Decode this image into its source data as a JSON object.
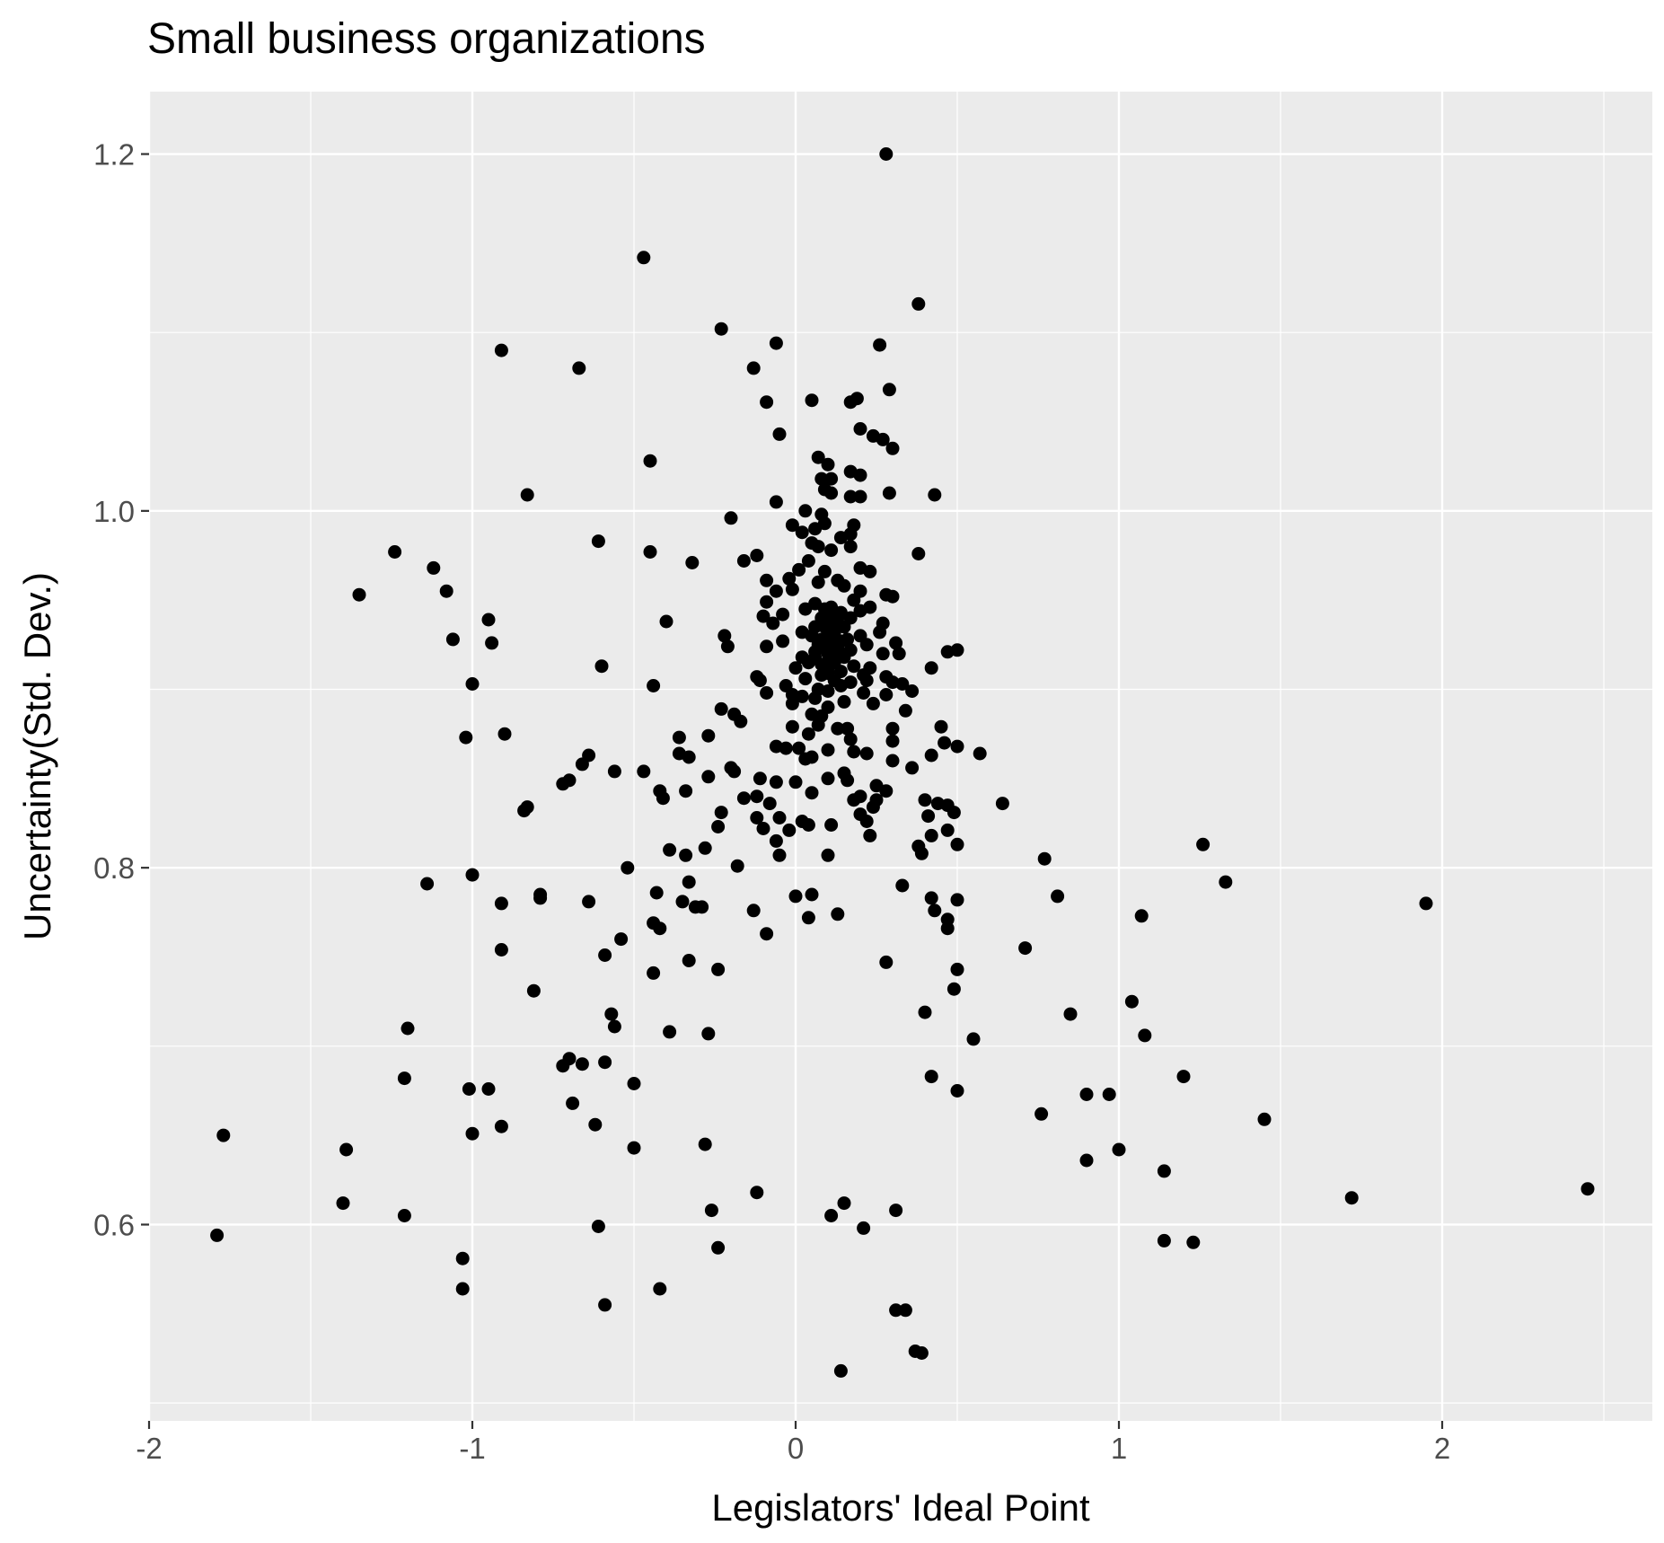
{
  "chart_data": {
    "type": "scatter",
    "title": "Small business organizations",
    "xlabel": "Legislators' Ideal Point",
    "ylabel": "Uncertainty(Std. Dev.)",
    "xlim": [
      -2.0,
      2.65
    ],
    "ylim": [
      0.49,
      1.235
    ],
    "x_ticks": [
      -2,
      -1,
      0,
      1,
      2
    ],
    "x_tick_labels": [
      "-2",
      "-1",
      "0",
      "1",
      "2"
    ],
    "y_ticks": [
      0.6,
      0.8,
      1.0,
      1.2
    ],
    "y_tick_labels": [
      "0.6",
      "0.8",
      "1.0",
      "1.2"
    ],
    "grid": true,
    "colors": {
      "panel": "#ebebeb",
      "grid": "#ffffff",
      "point": "#000000",
      "tick": "#4d4d4d"
    },
    "points": [
      [
        0.28,
        1.2
      ],
      [
        -0.47,
        1.142
      ],
      [
        0.38,
        1.116
      ],
      [
        -0.23,
        1.102
      ],
      [
        -0.06,
        1.094
      ],
      [
        0.26,
        1.093
      ],
      [
        -0.91,
        1.09
      ],
      [
        -0.67,
        1.08
      ],
      [
        -0.13,
        1.08
      ],
      [
        0.29,
        1.068
      ],
      [
        -0.09,
        1.061
      ],
      [
        0.05,
        1.062
      ],
      [
        0.17,
        1.061
      ],
      [
        0.19,
        1.063
      ],
      [
        0.2,
        1.046
      ],
      [
        0.24,
        1.042
      ],
      [
        0.27,
        1.04
      ],
      [
        0.3,
        1.035
      ],
      [
        -0.05,
        1.043
      ],
      [
        -0.45,
        1.028
      ],
      [
        0.07,
        1.03
      ],
      [
        0.1,
        1.026
      ],
      [
        0.17,
        1.022
      ],
      [
        0.2,
        1.02
      ],
      [
        0.11,
        1.018
      ],
      [
        0.08,
        1.018
      ],
      [
        0.09,
        1.012
      ],
      [
        0.11,
        1.01
      ],
      [
        0.17,
        1.008
      ],
      [
        0.2,
        1.008
      ],
      [
        0.29,
        1.01
      ],
      [
        0.43,
        1.009
      ],
      [
        -0.83,
        1.009
      ],
      [
        -0.06,
        1.005
      ],
      [
        0.03,
        1.0
      ],
      [
        0.08,
        0.998
      ],
      [
        0.09,
        0.993
      ],
      [
        0.06,
        0.99
      ],
      [
        0.17,
        0.987
      ],
      [
        0.18,
        0.992
      ],
      [
        0.14,
        0.985
      ],
      [
        0.05,
        0.982
      ],
      [
        0.02,
        0.988
      ],
      [
        -0.01,
        0.992
      ],
      [
        -0.2,
        0.996
      ],
      [
        -0.61,
        0.983
      ],
      [
        -1.24,
        0.977
      ],
      [
        -0.45,
        0.977
      ],
      [
        0.38,
        0.976
      ],
      [
        0.11,
        0.978
      ],
      [
        0.07,
        0.98
      ],
      [
        0.17,
        0.98
      ],
      [
        0.04,
        0.972
      ],
      [
        -0.12,
        0.975
      ],
      [
        -0.16,
        0.972
      ],
      [
        -0.32,
        0.971
      ],
      [
        -1.12,
        0.968
      ],
      [
        0.2,
        0.968
      ],
      [
        0.23,
        0.966
      ],
      [
        0.01,
        0.967
      ],
      [
        0.09,
        0.966
      ],
      [
        -0.02,
        0.962
      ],
      [
        -0.09,
        0.961
      ],
      [
        0.07,
        0.96
      ],
      [
        0.13,
        0.961
      ],
      [
        -0.06,
        0.955
      ],
      [
        -0.01,
        0.956
      ],
      [
        0.15,
        0.958
      ],
      [
        0.2,
        0.955
      ],
      [
        0.28,
        0.953
      ],
      [
        0.3,
        0.952
      ],
      [
        0.18,
        0.95
      ],
      [
        -0.09,
        0.949
      ],
      [
        0.06,
        0.948
      ],
      [
        0.03,
        0.945
      ],
      [
        0.11,
        0.946
      ],
      [
        0.14,
        0.943
      ],
      [
        0.2,
        0.944
      ],
      [
        0.23,
        0.946
      ],
      [
        -1.35,
        0.953
      ],
      [
        -1.08,
        0.955
      ],
      [
        -0.1,
        0.941
      ],
      [
        -0.04,
        0.942
      ],
      [
        0.08,
        0.94
      ],
      [
        0.11,
        0.94
      ],
      [
        0.17,
        0.94
      ],
      [
        0.27,
        0.937
      ],
      [
        -0.07,
        0.937
      ],
      [
        -0.4,
        0.938
      ],
      [
        -0.95,
        0.939
      ],
      [
        0.06,
        0.935
      ],
      [
        0.15,
        0.935
      ],
      [
        0.2,
        0.93
      ],
      [
        0.26,
        0.932
      ],
      [
        0.02,
        0.932
      ],
      [
        0.1,
        0.93
      ],
      [
        -0.22,
        0.93
      ],
      [
        -1.06,
        0.928
      ],
      [
        -0.94,
        0.926
      ],
      [
        -0.04,
        0.927
      ],
      [
        0.12,
        0.926
      ],
      [
        0.14,
        0.927
      ],
      [
        0.22,
        0.925
      ],
      [
        0.31,
        0.926
      ],
      [
        0.5,
        0.922
      ],
      [
        0.47,
        0.921
      ],
      [
        -0.21,
        0.924
      ],
      [
        -0.09,
        0.924
      ],
      [
        0.06,
        0.921
      ],
      [
        0.09,
        0.923
      ],
      [
        0.17,
        0.922
      ],
      [
        0.27,
        0.92
      ],
      [
        0.32,
        0.92
      ],
      [
        0.02,
        0.918
      ],
      [
        0.11,
        0.917
      ],
      [
        0.15,
        0.918
      ],
      [
        0.04,
        0.915
      ],
      [
        0.08,
        0.914
      ],
      [
        0.18,
        0.913
      ],
      [
        0.23,
        0.912
      ],
      [
        0.42,
        0.912
      ],
      [
        -0.6,
        0.913
      ],
      [
        0.0,
        0.912
      ],
      [
        -0.12,
        0.907
      ],
      [
        0.1,
        0.909
      ],
      [
        0.14,
        0.91
      ],
      [
        0.21,
        0.908
      ],
      [
        0.28,
        0.907
      ],
      [
        -0.11,
        0.905
      ],
      [
        0.03,
        0.906
      ],
      [
        0.17,
        0.904
      ],
      [
        0.22,
        0.905
      ],
      [
        0.3,
        0.904
      ],
      [
        0.33,
        0.903
      ],
      [
        -1.0,
        0.903
      ],
      [
        -0.44,
        0.902
      ],
      [
        -0.03,
        0.902
      ],
      [
        0.07,
        0.9
      ],
      [
        0.1,
        0.899
      ],
      [
        0.21,
        0.898
      ],
      [
        0.28,
        0.897
      ],
      [
        0.36,
        0.899
      ],
      [
        -0.09,
        0.898
      ],
      [
        -0.01,
        0.897
      ],
      [
        0.02,
        0.896
      ],
      [
        0.06,
        0.895
      ],
      [
        0.15,
        0.893
      ],
      [
        0.24,
        0.892
      ],
      [
        -0.01,
        0.892
      ],
      [
        0.1,
        0.89
      ],
      [
        0.34,
        0.888
      ],
      [
        -0.23,
        0.889
      ],
      [
        -0.19,
        0.886
      ],
      [
        0.05,
        0.886
      ],
      [
        0.08,
        0.885
      ],
      [
        -0.17,
        0.882
      ],
      [
        0.07,
        0.88
      ],
      [
        0.16,
        0.878
      ],
      [
        0.3,
        0.878
      ],
      [
        0.45,
        0.879
      ],
      [
        -0.01,
        0.879
      ],
      [
        0.13,
        0.878
      ],
      [
        0.04,
        0.875
      ],
      [
        -0.27,
        0.874
      ],
      [
        -0.9,
        0.875
      ],
      [
        -1.02,
        0.873
      ],
      [
        -0.36,
        0.873
      ],
      [
        0.17,
        0.872
      ],
      [
        0.3,
        0.871
      ],
      [
        0.46,
        0.87
      ],
      [
        0.5,
        0.868
      ],
      [
        -0.06,
        0.868
      ],
      [
        -0.03,
        0.867
      ],
      [
        0.01,
        0.867
      ],
      [
        0.1,
        0.866
      ],
      [
        0.18,
        0.865
      ],
      [
        0.22,
        0.864
      ],
      [
        0.3,
        0.86
      ],
      [
        0.42,
        0.863
      ],
      [
        0.57,
        0.864
      ],
      [
        -0.36,
        0.864
      ],
      [
        -0.33,
        0.862
      ],
      [
        -0.64,
        0.863
      ],
      [
        -0.66,
        0.858
      ],
      [
        -0.2,
        0.856
      ],
      [
        0.03,
        0.861
      ],
      [
        0.05,
        0.862
      ],
      [
        0.36,
        0.856
      ],
      [
        -0.56,
        0.854
      ],
      [
        -0.47,
        0.854
      ],
      [
        -0.19,
        0.854
      ],
      [
        -0.27,
        0.851
      ],
      [
        0.15,
        0.853
      ],
      [
        -0.7,
        0.849
      ],
      [
        -0.72,
        0.847
      ],
      [
        0.1,
        0.85
      ],
      [
        0.16,
        0.849
      ],
      [
        0.0,
        0.848
      ],
      [
        -0.11,
        0.85
      ],
      [
        -0.06,
        0.848
      ],
      [
        0.25,
        0.846
      ],
      [
        0.28,
        0.843
      ],
      [
        -0.42,
        0.843
      ],
      [
        -0.34,
        0.843
      ],
      [
        0.05,
        0.842
      ],
      [
        0.2,
        0.84
      ],
      [
        0.18,
        0.838
      ],
      [
        -0.41,
        0.839
      ],
      [
        -0.16,
        0.839
      ],
      [
        -0.12,
        0.84
      ],
      [
        -0.08,
        0.836
      ],
      [
        0.25,
        0.838
      ],
      [
        0.4,
        0.838
      ],
      [
        0.44,
        0.836
      ],
      [
        0.47,
        0.835
      ],
      [
        0.64,
        0.836
      ],
      [
        -0.84,
        0.832
      ],
      [
        -0.83,
        0.834
      ],
      [
        0.24,
        0.834
      ],
      [
        0.49,
        0.831
      ],
      [
        0.2,
        0.83
      ],
      [
        0.41,
        0.829
      ],
      [
        -0.23,
        0.831
      ],
      [
        -0.12,
        0.828
      ],
      [
        -0.05,
        0.828
      ],
      [
        0.02,
        0.826
      ],
      [
        0.04,
        0.824
      ],
      [
        0.11,
        0.824
      ],
      [
        0.22,
        0.826
      ],
      [
        -0.24,
        0.823
      ],
      [
        -0.1,
        0.822
      ],
      [
        -0.02,
        0.821
      ],
      [
        0.47,
        0.821
      ],
      [
        0.23,
        0.818
      ],
      [
        0.42,
        0.818
      ],
      [
        -0.06,
        0.815
      ],
      [
        0.38,
        0.812
      ],
      [
        0.5,
        0.813
      ],
      [
        -0.28,
        0.811
      ],
      [
        -0.39,
        0.81
      ],
      [
        1.26,
        0.813
      ],
      [
        0.39,
        0.808
      ],
      [
        -0.34,
        0.807
      ],
      [
        -0.05,
        0.807
      ],
      [
        0.1,
        0.807
      ],
      [
        0.77,
        0.805
      ],
      [
        -0.18,
        0.801
      ],
      [
        -0.52,
        0.8
      ],
      [
        -1.0,
        0.796
      ],
      [
        -0.33,
        0.792
      ],
      [
        1.33,
        0.792
      ],
      [
        -1.14,
        0.791
      ],
      [
        0.33,
        0.79
      ],
      [
        -0.79,
        0.785
      ],
      [
        -0.43,
        0.786
      ],
      [
        -0.79,
        0.783
      ],
      [
        0.0,
        0.784
      ],
      [
        0.05,
        0.785
      ],
      [
        0.42,
        0.783
      ],
      [
        0.5,
        0.782
      ],
      [
        0.81,
        0.784
      ],
      [
        -0.64,
        0.781
      ],
      [
        -0.35,
        0.781
      ],
      [
        -0.91,
        0.78
      ],
      [
        -0.31,
        0.778
      ],
      [
        -0.29,
        0.778
      ],
      [
        1.95,
        0.78
      ],
      [
        0.43,
        0.776
      ],
      [
        -0.13,
        0.776
      ],
      [
        0.13,
        0.774
      ],
      [
        1.07,
        0.773
      ],
      [
        0.04,
        0.772
      ],
      [
        0.47,
        0.771
      ],
      [
        -0.44,
        0.769
      ],
      [
        -0.42,
        0.766
      ],
      [
        0.47,
        0.766
      ],
      [
        -0.09,
        0.763
      ],
      [
        -0.54,
        0.76
      ],
      [
        0.71,
        0.755
      ],
      [
        -0.91,
        0.754
      ],
      [
        -0.59,
        0.751
      ],
      [
        -0.33,
        0.748
      ],
      [
        0.28,
        0.747
      ],
      [
        -0.24,
        0.743
      ],
      [
        0.5,
        0.743
      ],
      [
        -0.44,
        0.741
      ],
      [
        0.49,
        0.732
      ],
      [
        -0.81,
        0.731
      ],
      [
        1.04,
        0.725
      ],
      [
        0.4,
        0.719
      ],
      [
        -0.57,
        0.718
      ],
      [
        0.85,
        0.718
      ],
      [
        -0.56,
        0.711
      ],
      [
        -1.2,
        0.71
      ],
      [
        -0.39,
        0.708
      ],
      [
        -0.27,
        0.707
      ],
      [
        1.08,
        0.706
      ],
      [
        0.55,
        0.704
      ],
      [
        -0.72,
        0.689
      ],
      [
        -0.7,
        0.693
      ],
      [
        -0.66,
        0.69
      ],
      [
        -0.59,
        0.691
      ],
      [
        0.42,
        0.683
      ],
      [
        1.2,
        0.683
      ],
      [
        -1.21,
        0.682
      ],
      [
        -0.5,
        0.679
      ],
      [
        -1.01,
        0.676
      ],
      [
        -0.95,
        0.676
      ],
      [
        0.5,
        0.675
      ],
      [
        0.9,
        0.673
      ],
      [
        0.97,
        0.673
      ],
      [
        -0.69,
        0.668
      ],
      [
        0.76,
        0.662
      ],
      [
        1.45,
        0.659
      ],
      [
        -0.62,
        0.656
      ],
      [
        -0.91,
        0.655
      ],
      [
        -1.0,
        0.651
      ],
      [
        -1.77,
        0.65
      ],
      [
        -0.28,
        0.645
      ],
      [
        -0.5,
        0.643
      ],
      [
        -1.39,
        0.642
      ],
      [
        1.0,
        0.642
      ],
      [
        0.9,
        0.636
      ],
      [
        1.14,
        0.63
      ],
      [
        -0.12,
        0.618
      ],
      [
        1.72,
        0.615
      ],
      [
        2.45,
        0.62
      ],
      [
        -1.4,
        0.612
      ],
      [
        0.15,
        0.612
      ],
      [
        -0.26,
        0.608
      ],
      [
        0.31,
        0.608
      ],
      [
        -1.21,
        0.605
      ],
      [
        0.11,
        0.605
      ],
      [
        -0.61,
        0.599
      ],
      [
        0.21,
        0.598
      ],
      [
        -1.79,
        0.594
      ],
      [
        1.14,
        0.591
      ],
      [
        1.23,
        0.59
      ],
      [
        -0.24,
        0.587
      ],
      [
        -1.03,
        0.581
      ],
      [
        -1.03,
        0.564
      ],
      [
        -0.42,
        0.564
      ],
      [
        -0.59,
        0.555
      ],
      [
        0.31,
        0.552
      ],
      [
        0.34,
        0.552
      ],
      [
        0.37,
        0.529
      ],
      [
        0.39,
        0.528
      ],
      [
        0.14,
        0.518
      ],
      [
        0.09,
        0.935
      ],
      [
        0.12,
        0.932
      ],
      [
        0.08,
        0.928
      ],
      [
        0.13,
        0.924
      ],
      [
        0.1,
        0.92
      ],
      [
        0.06,
        0.918
      ],
      [
        0.12,
        0.915
      ],
      [
        0.09,
        0.945
      ],
      [
        0.13,
        0.94
      ],
      [
        0.07,
        0.925
      ],
      [
        0.14,
        0.92
      ],
      [
        0.11,
        0.936
      ],
      [
        0.05,
        0.93
      ],
      [
        0.16,
        0.928
      ],
      [
        0.1,
        0.912
      ],
      [
        0.12,
        0.905
      ],
      [
        0.08,
        0.908
      ],
      [
        0.14,
        0.902
      ]
    ]
  }
}
